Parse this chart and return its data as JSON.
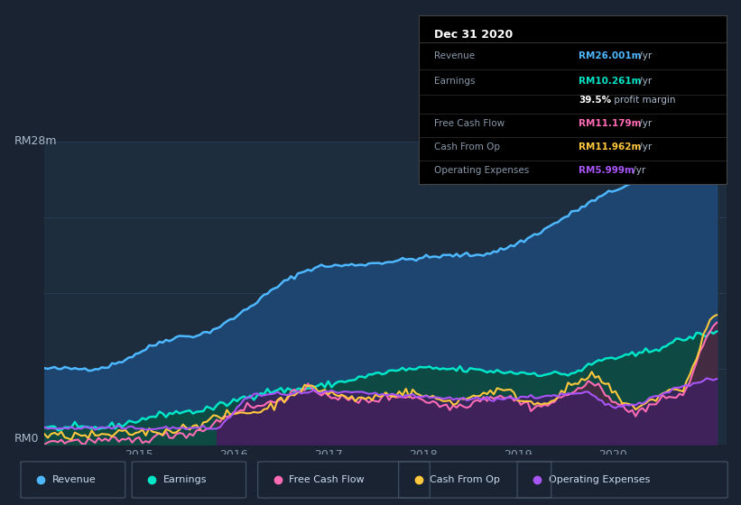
{
  "bg_color": "#1a2332",
  "plot_bg_color": "#1e2d3d",
  "title_label": "RM28m",
  "zero_label": "RM0",
  "ylim": [
    0,
    28
  ],
  "xlim": [
    2014.0,
    2021.2
  ],
  "info_box": {
    "title": "Dec 31 2020",
    "rows": [
      {
        "label": "Revenue",
        "value": "RM26.001m",
        "unit": " /yr",
        "color": "#4db8ff"
      },
      {
        "label": "Earnings",
        "value": "RM10.261m",
        "unit": " /yr",
        "color": "#00e5c8"
      },
      {
        "label": "",
        "value": "39.5%",
        "unit": " profit margin",
        "color": "#ffffff"
      },
      {
        "label": "Free Cash Flow",
        "value": "RM11.179m",
        "unit": " /yr",
        "color": "#ff6bb5"
      },
      {
        "label": "Cash From Op",
        "value": "RM11.962m",
        "unit": " /yr",
        "color": "#ffc83d"
      },
      {
        "label": "Operating Expenses",
        "value": "RM5.999m",
        "unit": " /yr",
        "color": "#a855f7"
      }
    ]
  },
  "legend": [
    {
      "label": "Revenue",
      "color": "#4db8ff"
    },
    {
      "label": "Earnings",
      "color": "#00e5c8"
    },
    {
      "label": "Free Cash Flow",
      "color": "#ff6bb5"
    },
    {
      "label": "Cash From Op",
      "color": "#ffc83d"
    },
    {
      "label": "Operating Expenses",
      "color": "#a855f7"
    }
  ],
  "revenue_color": "#4db8ff",
  "revenue_fill": "#1e4a7a",
  "earnings_color": "#00e5c8",
  "earnings_fill": "#0d4a3d",
  "fcf_color": "#ff6bb5",
  "fcf_fill": "#5a2040",
  "cashop_color": "#ffc83d",
  "cashop_fill": "#4a3a10",
  "opex_color": "#a855f7",
  "opex_fill": "#3d2060"
}
